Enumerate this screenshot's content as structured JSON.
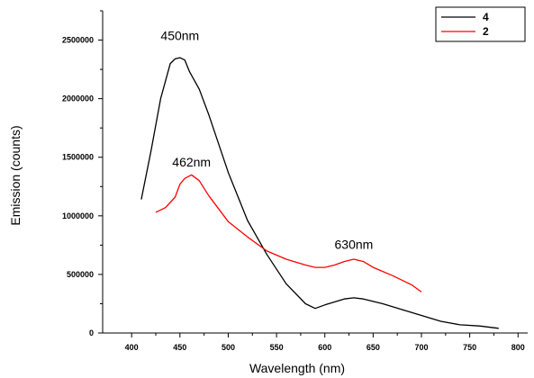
{
  "chart_data": {
    "type": "line",
    "title": "",
    "xlabel": "Wavelength (nm)",
    "ylabel": "Emission (counts)",
    "xlim": [
      370,
      810
    ],
    "ylim": [
      0,
      2750000
    ],
    "x_ticks": [
      400,
      450,
      500,
      550,
      600,
      650,
      700,
      750,
      800
    ],
    "y_ticks": [
      0,
      500000,
      1000000,
      1500000,
      2000000,
      2500000
    ],
    "x_tick_labels": [
      "400",
      "450",
      "500",
      "550",
      "600",
      "650",
      "700",
      "750",
      "800"
    ],
    "y_tick_labels": [
      "0",
      "500000",
      "1000000",
      "1500000",
      "2000000",
      "2500000"
    ],
    "grid": false,
    "legend_position": "top-right",
    "series": [
      {
        "name": "4",
        "color": "#000000",
        "x": [
          410,
          420,
          430,
          440,
          445,
          450,
          455,
          460,
          470,
          480,
          500,
          520,
          540,
          560,
          580,
          590,
          600,
          620,
          630,
          640,
          660,
          680,
          700,
          720,
          740,
          760,
          780
        ],
        "y": [
          1140000,
          1550000,
          2000000,
          2300000,
          2340000,
          2350000,
          2330000,
          2230000,
          2080000,
          1860000,
          1370000,
          960000,
          670000,
          420000,
          250000,
          210000,
          240000,
          290000,
          300000,
          290000,
          250000,
          200000,
          150000,
          100000,
          70000,
          60000,
          40000
        ]
      },
      {
        "name": "2",
        "color": "#ff0000",
        "x": [
          425,
          435,
          445,
          450,
          455,
          462,
          470,
          480,
          500,
          520,
          540,
          560,
          580,
          590,
          600,
          610,
          620,
          630,
          640,
          650,
          670,
          690,
          700
        ],
        "y": [
          1030000,
          1070000,
          1160000,
          1270000,
          1320000,
          1350000,
          1300000,
          1170000,
          950000,
          820000,
          700000,
          630000,
          580000,
          560000,
          560000,
          580000,
          610000,
          630000,
          610000,
          560000,
          490000,
          410000,
          350000
        ]
      }
    ],
    "annotations": [
      {
        "text": "450nm",
        "x": 450,
        "y": 2500000
      },
      {
        "text": "462nm",
        "x": 462,
        "y": 1420000
      },
      {
        "text": "630nm",
        "x": 630,
        "y": 720000
      }
    ]
  }
}
